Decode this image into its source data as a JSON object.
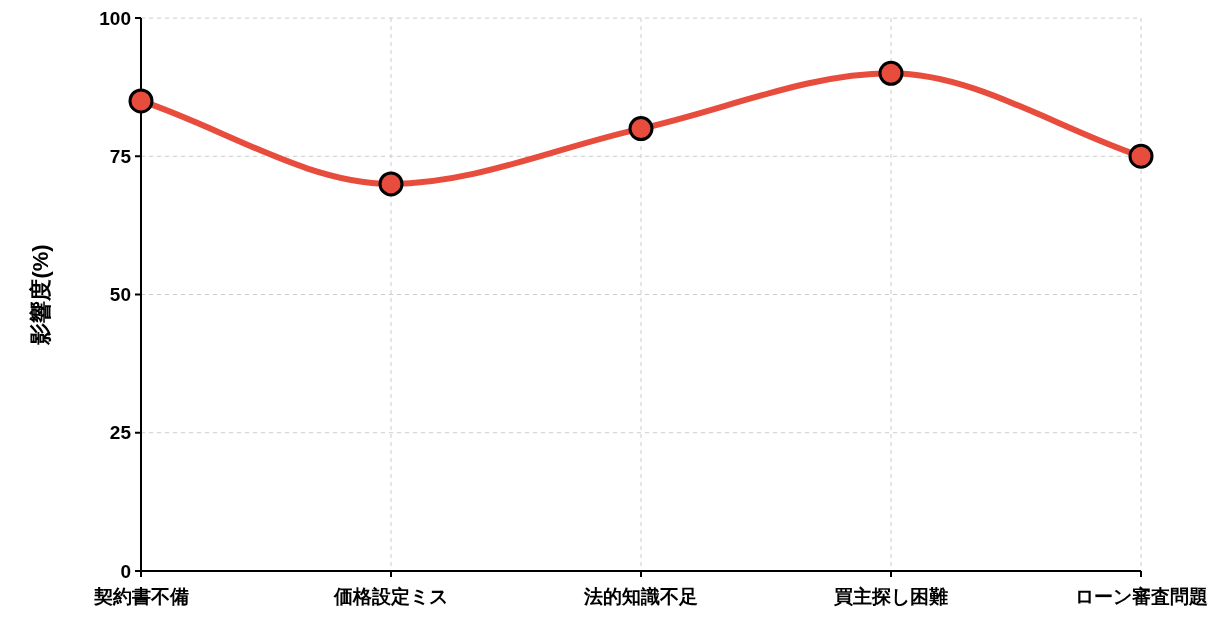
{
  "chart_data": {
    "type": "line",
    "ylabel": "影響度(%)",
    "categories": [
      "契約書不備",
      "価格設定ミス",
      "法的知識不足",
      "買主探し困難",
      "ローン審査問題"
    ],
    "series": [
      {
        "color": "#e74c3c",
        "values": [
          85,
          70,
          80,
          90,
          75
        ]
      }
    ],
    "ylim": [
      0,
      100
    ],
    "yticks": [
      0,
      25,
      50,
      75,
      100
    ],
    "grid": true,
    "marker": "circle",
    "line_style": "solid"
  }
}
